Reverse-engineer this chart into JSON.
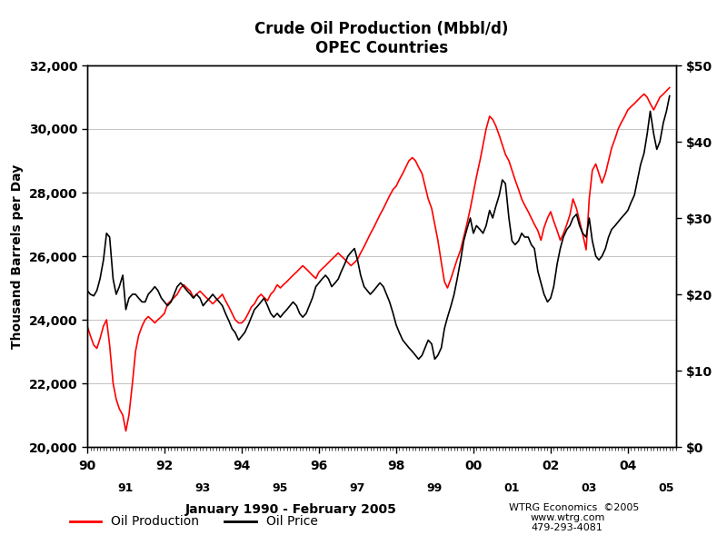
{
  "title_line1": "Crude Oil Production (Mbbl/d)",
  "title_line2": "OPEC Countries",
  "xlabel": "January 1990 - February 2005",
  "ylabel_left": "Thousand Barrels per Day",
  "annotation_line1": "WTRG Economics  ©2005",
  "annotation_line2": "www.wtrg.com",
  "annotation_line3": "479-293-4081",
  "legend_labels": [
    "Oil Production",
    "Oil Price"
  ],
  "legend_colors": [
    "#FF0000",
    "#000000"
  ],
  "line_color_production": "#FF0000",
  "line_color_price": "#000000",
  "background_color": "#FFFFFF",
  "xlim": [
    1990.0,
    2005.25
  ],
  "ylim_left": [
    20000,
    32000
  ],
  "ylim_right": [
    0,
    50
  ],
  "xticks_major": [
    1990,
    1992,
    1994,
    1996,
    1998,
    2000,
    2002,
    2004
  ],
  "xticks_minor": [
    1991,
    1993,
    1995,
    1997,
    1999,
    2001,
    2003,
    2005
  ],
  "yticks_left": [
    20000,
    22000,
    24000,
    26000,
    28000,
    30000,
    32000
  ],
  "yticks_right": [
    0,
    10,
    20,
    30,
    40,
    50
  ],
  "ytick_right_labels": [
    "$0",
    "$10",
    "$20",
    "$30",
    "$40",
    "$50"
  ],
  "production_data": [
    [
      1990.0,
      23800
    ],
    [
      1990.08,
      23500
    ],
    [
      1990.17,
      23200
    ],
    [
      1990.25,
      23100
    ],
    [
      1990.33,
      23400
    ],
    [
      1990.42,
      23800
    ],
    [
      1990.5,
      24000
    ],
    [
      1990.58,
      23200
    ],
    [
      1990.67,
      22000
    ],
    [
      1990.75,
      21500
    ],
    [
      1990.83,
      21200
    ],
    [
      1990.92,
      21000
    ],
    [
      1991.0,
      20500
    ],
    [
      1991.08,
      21000
    ],
    [
      1991.17,
      22000
    ],
    [
      1991.25,
      23000
    ],
    [
      1991.33,
      23500
    ],
    [
      1991.42,
      23800
    ],
    [
      1991.5,
      24000
    ],
    [
      1991.58,
      24100
    ],
    [
      1991.67,
      24000
    ],
    [
      1991.75,
      23900
    ],
    [
      1991.83,
      24000
    ],
    [
      1991.92,
      24100
    ],
    [
      1992.0,
      24200
    ],
    [
      1992.08,
      24500
    ],
    [
      1992.17,
      24600
    ],
    [
      1992.25,
      24700
    ],
    [
      1992.33,
      24800
    ],
    [
      1992.42,
      25000
    ],
    [
      1992.5,
      25100
    ],
    [
      1992.58,
      25000
    ],
    [
      1992.67,
      24900
    ],
    [
      1992.75,
      24700
    ],
    [
      1992.83,
      24800
    ],
    [
      1992.92,
      24900
    ],
    [
      1993.0,
      24800
    ],
    [
      1993.08,
      24700
    ],
    [
      1993.17,
      24600
    ],
    [
      1993.25,
      24500
    ],
    [
      1993.33,
      24600
    ],
    [
      1993.42,
      24700
    ],
    [
      1993.5,
      24800
    ],
    [
      1993.58,
      24600
    ],
    [
      1993.67,
      24400
    ],
    [
      1993.75,
      24200
    ],
    [
      1993.83,
      24000
    ],
    [
      1993.92,
      23900
    ],
    [
      1994.0,
      23900
    ],
    [
      1994.08,
      24000
    ],
    [
      1994.17,
      24200
    ],
    [
      1994.25,
      24400
    ],
    [
      1994.33,
      24500
    ],
    [
      1994.42,
      24700
    ],
    [
      1994.5,
      24800
    ],
    [
      1994.58,
      24700
    ],
    [
      1994.67,
      24600
    ],
    [
      1994.75,
      24800
    ],
    [
      1994.83,
      24900
    ],
    [
      1994.92,
      25100
    ],
    [
      1995.0,
      25000
    ],
    [
      1995.08,
      25100
    ],
    [
      1995.17,
      25200
    ],
    [
      1995.25,
      25300
    ],
    [
      1995.33,
      25400
    ],
    [
      1995.42,
      25500
    ],
    [
      1995.5,
      25600
    ],
    [
      1995.58,
      25700
    ],
    [
      1995.67,
      25600
    ],
    [
      1995.75,
      25500
    ],
    [
      1995.83,
      25400
    ],
    [
      1995.92,
      25300
    ],
    [
      1996.0,
      25500
    ],
    [
      1996.08,
      25600
    ],
    [
      1996.17,
      25700
    ],
    [
      1996.25,
      25800
    ],
    [
      1996.33,
      25900
    ],
    [
      1996.42,
      26000
    ],
    [
      1996.5,
      26100
    ],
    [
      1996.58,
      26000
    ],
    [
      1996.67,
      25900
    ],
    [
      1996.75,
      25800
    ],
    [
      1996.83,
      25700
    ],
    [
      1996.92,
      25800
    ],
    [
      1997.0,
      25900
    ],
    [
      1997.08,
      26100
    ],
    [
      1997.17,
      26300
    ],
    [
      1997.25,
      26500
    ],
    [
      1997.33,
      26700
    ],
    [
      1997.42,
      26900
    ],
    [
      1997.5,
      27100
    ],
    [
      1997.58,
      27300
    ],
    [
      1997.67,
      27500
    ],
    [
      1997.75,
      27700
    ],
    [
      1997.83,
      27900
    ],
    [
      1997.92,
      28100
    ],
    [
      1998.0,
      28200
    ],
    [
      1998.08,
      28400
    ],
    [
      1998.17,
      28600
    ],
    [
      1998.25,
      28800
    ],
    [
      1998.33,
      29000
    ],
    [
      1998.42,
      29100
    ],
    [
      1998.5,
      29000
    ],
    [
      1998.58,
      28800
    ],
    [
      1998.67,
      28600
    ],
    [
      1998.75,
      28200
    ],
    [
      1998.83,
      27800
    ],
    [
      1998.92,
      27500
    ],
    [
      1999.0,
      27000
    ],
    [
      1999.08,
      26500
    ],
    [
      1999.17,
      25800
    ],
    [
      1999.25,
      25200
    ],
    [
      1999.33,
      25000
    ],
    [
      1999.42,
      25300
    ],
    [
      1999.5,
      25600
    ],
    [
      1999.58,
      25900
    ],
    [
      1999.67,
      26200
    ],
    [
      1999.75,
      26600
    ],
    [
      1999.83,
      27000
    ],
    [
      1999.92,
      27500
    ],
    [
      2000.0,
      28000
    ],
    [
      2000.08,
      28500
    ],
    [
      2000.17,
      29000
    ],
    [
      2000.25,
      29500
    ],
    [
      2000.33,
      30000
    ],
    [
      2000.42,
      30400
    ],
    [
      2000.5,
      30300
    ],
    [
      2000.58,
      30100
    ],
    [
      2000.67,
      29800
    ],
    [
      2000.75,
      29500
    ],
    [
      2000.83,
      29200
    ],
    [
      2000.92,
      29000
    ],
    [
      2001.0,
      28700
    ],
    [
      2001.08,
      28400
    ],
    [
      2001.17,
      28100
    ],
    [
      2001.25,
      27800
    ],
    [
      2001.33,
      27600
    ],
    [
      2001.42,
      27400
    ],
    [
      2001.5,
      27200
    ],
    [
      2001.58,
      27000
    ],
    [
      2001.67,
      26800
    ],
    [
      2001.75,
      26500
    ],
    [
      2001.83,
      26900
    ],
    [
      2001.92,
      27200
    ],
    [
      2002.0,
      27400
    ],
    [
      2002.08,
      27100
    ],
    [
      2002.17,
      26800
    ],
    [
      2002.25,
      26500
    ],
    [
      2002.33,
      26700
    ],
    [
      2002.42,
      27000
    ],
    [
      2002.5,
      27300
    ],
    [
      2002.58,
      27800
    ],
    [
      2002.67,
      27500
    ],
    [
      2002.75,
      27100
    ],
    [
      2002.83,
      26700
    ],
    [
      2002.92,
      26200
    ],
    [
      2003.0,
      27800
    ],
    [
      2003.08,
      28700
    ],
    [
      2003.17,
      28900
    ],
    [
      2003.25,
      28600
    ],
    [
      2003.33,
      28300
    ],
    [
      2003.42,
      28600
    ],
    [
      2003.5,
      29000
    ],
    [
      2003.58,
      29400
    ],
    [
      2003.67,
      29700
    ],
    [
      2003.75,
      30000
    ],
    [
      2003.83,
      30200
    ],
    [
      2003.92,
      30400
    ],
    [
      2004.0,
      30600
    ],
    [
      2004.08,
      30700
    ],
    [
      2004.17,
      30800
    ],
    [
      2004.25,
      30900
    ],
    [
      2004.33,
      31000
    ],
    [
      2004.42,
      31100
    ],
    [
      2004.5,
      31000
    ],
    [
      2004.58,
      30800
    ],
    [
      2004.67,
      30600
    ],
    [
      2004.75,
      30800
    ],
    [
      2004.83,
      31000
    ],
    [
      2004.92,
      31100
    ],
    [
      2005.0,
      31200
    ],
    [
      2005.08,
      31300
    ]
  ],
  "price_data_usd": [
    [
      1990.0,
      20.5
    ],
    [
      1990.08,
      20.0
    ],
    [
      1990.17,
      19.8
    ],
    [
      1990.25,
      20.5
    ],
    [
      1990.33,
      22.0
    ],
    [
      1990.42,
      24.5
    ],
    [
      1990.5,
      28.0
    ],
    [
      1990.58,
      27.5
    ],
    [
      1990.67,
      22.0
    ],
    [
      1990.75,
      20.0
    ],
    [
      1990.83,
      21.0
    ],
    [
      1990.92,
      22.5
    ],
    [
      1991.0,
      18.0
    ],
    [
      1991.08,
      19.5
    ],
    [
      1991.17,
      20.0
    ],
    [
      1991.25,
      20.0
    ],
    [
      1991.33,
      19.5
    ],
    [
      1991.42,
      19.0
    ],
    [
      1991.5,
      19.0
    ],
    [
      1991.58,
      20.0
    ],
    [
      1991.67,
      20.5
    ],
    [
      1991.75,
      21.0
    ],
    [
      1991.83,
      20.5
    ],
    [
      1991.92,
      19.5
    ],
    [
      1992.0,
      19.0
    ],
    [
      1992.08,
      18.5
    ],
    [
      1992.17,
      19.0
    ],
    [
      1992.25,
      20.0
    ],
    [
      1992.33,
      21.0
    ],
    [
      1992.42,
      21.5
    ],
    [
      1992.5,
      21.0
    ],
    [
      1992.58,
      20.5
    ],
    [
      1992.67,
      20.0
    ],
    [
      1992.75,
      19.5
    ],
    [
      1992.83,
      20.0
    ],
    [
      1992.92,
      19.5
    ],
    [
      1993.0,
      18.5
    ],
    [
      1993.08,
      19.0
    ],
    [
      1993.17,
      19.5
    ],
    [
      1993.25,
      20.0
    ],
    [
      1993.33,
      19.5
    ],
    [
      1993.42,
      19.0
    ],
    [
      1993.5,
      18.5
    ],
    [
      1993.58,
      17.5
    ],
    [
      1993.67,
      16.5
    ],
    [
      1993.75,
      15.5
    ],
    [
      1993.83,
      15.0
    ],
    [
      1993.92,
      14.0
    ],
    [
      1994.0,
      14.5
    ],
    [
      1994.08,
      15.0
    ],
    [
      1994.17,
      16.0
    ],
    [
      1994.25,
      17.0
    ],
    [
      1994.33,
      18.0
    ],
    [
      1994.42,
      18.5
    ],
    [
      1994.5,
      19.0
    ],
    [
      1994.58,
      19.5
    ],
    [
      1994.67,
      18.5
    ],
    [
      1994.75,
      17.5
    ],
    [
      1994.83,
      17.0
    ],
    [
      1994.92,
      17.5
    ],
    [
      1995.0,
      17.0
    ],
    [
      1995.08,
      17.5
    ],
    [
      1995.17,
      18.0
    ],
    [
      1995.25,
      18.5
    ],
    [
      1995.33,
      19.0
    ],
    [
      1995.42,
      18.5
    ],
    [
      1995.5,
      17.5
    ],
    [
      1995.58,
      17.0
    ],
    [
      1995.67,
      17.5
    ],
    [
      1995.75,
      18.5
    ],
    [
      1995.83,
      19.5
    ],
    [
      1995.92,
      21.0
    ],
    [
      1996.0,
      21.5
    ],
    [
      1996.08,
      22.0
    ],
    [
      1996.17,
      22.5
    ],
    [
      1996.25,
      22.0
    ],
    [
      1996.33,
      21.0
    ],
    [
      1996.42,
      21.5
    ],
    [
      1996.5,
      22.0
    ],
    [
      1996.58,
      23.0
    ],
    [
      1996.67,
      24.0
    ],
    [
      1996.75,
      25.0
    ],
    [
      1996.83,
      25.5
    ],
    [
      1996.92,
      26.0
    ],
    [
      1997.0,
      24.5
    ],
    [
      1997.08,
      22.5
    ],
    [
      1997.17,
      21.0
    ],
    [
      1997.25,
      20.5
    ],
    [
      1997.33,
      20.0
    ],
    [
      1997.42,
      20.5
    ],
    [
      1997.5,
      21.0
    ],
    [
      1997.58,
      21.5
    ],
    [
      1997.67,
      21.0
    ],
    [
      1997.75,
      20.0
    ],
    [
      1997.83,
      19.0
    ],
    [
      1997.92,
      17.5
    ],
    [
      1998.0,
      16.0
    ],
    [
      1998.08,
      15.0
    ],
    [
      1998.17,
      14.0
    ],
    [
      1998.25,
      13.5
    ],
    [
      1998.33,
      13.0
    ],
    [
      1998.42,
      12.5
    ],
    [
      1998.5,
      12.0
    ],
    [
      1998.58,
      11.5
    ],
    [
      1998.67,
      12.0
    ],
    [
      1998.75,
      13.0
    ],
    [
      1998.83,
      14.0
    ],
    [
      1998.92,
      13.5
    ],
    [
      1999.0,
      11.5
    ],
    [
      1999.08,
      12.0
    ],
    [
      1999.17,
      13.0
    ],
    [
      1999.25,
      15.5
    ],
    [
      1999.33,
      17.0
    ],
    [
      1999.42,
      18.5
    ],
    [
      1999.5,
      20.0
    ],
    [
      1999.58,
      22.0
    ],
    [
      1999.67,
      24.5
    ],
    [
      1999.75,
      27.0
    ],
    [
      1999.83,
      28.5
    ],
    [
      1999.92,
      30.0
    ],
    [
      2000.0,
      28.0
    ],
    [
      2000.08,
      29.0
    ],
    [
      2000.17,
      28.5
    ],
    [
      2000.25,
      28.0
    ],
    [
      2000.33,
      29.0
    ],
    [
      2000.42,
      31.0
    ],
    [
      2000.5,
      30.0
    ],
    [
      2000.58,
      31.5
    ],
    [
      2000.67,
      33.0
    ],
    [
      2000.75,
      35.0
    ],
    [
      2000.83,
      34.5
    ],
    [
      2000.92,
      30.0
    ],
    [
      2001.0,
      27.0
    ],
    [
      2001.08,
      26.5
    ],
    [
      2001.17,
      27.0
    ],
    [
      2001.25,
      28.0
    ],
    [
      2001.33,
      27.5
    ],
    [
      2001.42,
      27.5
    ],
    [
      2001.5,
      26.5
    ],
    [
      2001.58,
      26.0
    ],
    [
      2001.67,
      23.0
    ],
    [
      2001.75,
      21.5
    ],
    [
      2001.83,
      20.0
    ],
    [
      2001.92,
      19.0
    ],
    [
      2002.0,
      19.5
    ],
    [
      2002.08,
      21.0
    ],
    [
      2002.17,
      24.0
    ],
    [
      2002.25,
      26.0
    ],
    [
      2002.33,
      27.5
    ],
    [
      2002.42,
      28.5
    ],
    [
      2002.5,
      29.0
    ],
    [
      2002.58,
      30.0
    ],
    [
      2002.67,
      30.5
    ],
    [
      2002.75,
      29.0
    ],
    [
      2002.83,
      28.0
    ],
    [
      2002.92,
      27.5
    ],
    [
      2003.0,
      30.0
    ],
    [
      2003.08,
      27.0
    ],
    [
      2003.17,
      25.0
    ],
    [
      2003.25,
      24.5
    ],
    [
      2003.33,
      25.0
    ],
    [
      2003.42,
      26.0
    ],
    [
      2003.5,
      27.5
    ],
    [
      2003.58,
      28.5
    ],
    [
      2003.67,
      29.0
    ],
    [
      2003.75,
      29.5
    ],
    [
      2003.83,
      30.0
    ],
    [
      2003.92,
      30.5
    ],
    [
      2004.0,
      31.0
    ],
    [
      2004.08,
      32.0
    ],
    [
      2004.17,
      33.0
    ],
    [
      2004.25,
      35.0
    ],
    [
      2004.33,
      37.0
    ],
    [
      2004.42,
      38.5
    ],
    [
      2004.5,
      41.0
    ],
    [
      2004.58,
      44.0
    ],
    [
      2004.67,
      41.0
    ],
    [
      2004.75,
      39.0
    ],
    [
      2004.83,
      40.0
    ],
    [
      2004.92,
      42.5
    ],
    [
      2005.0,
      44.0
    ],
    [
      2005.08,
      46.0
    ]
  ]
}
